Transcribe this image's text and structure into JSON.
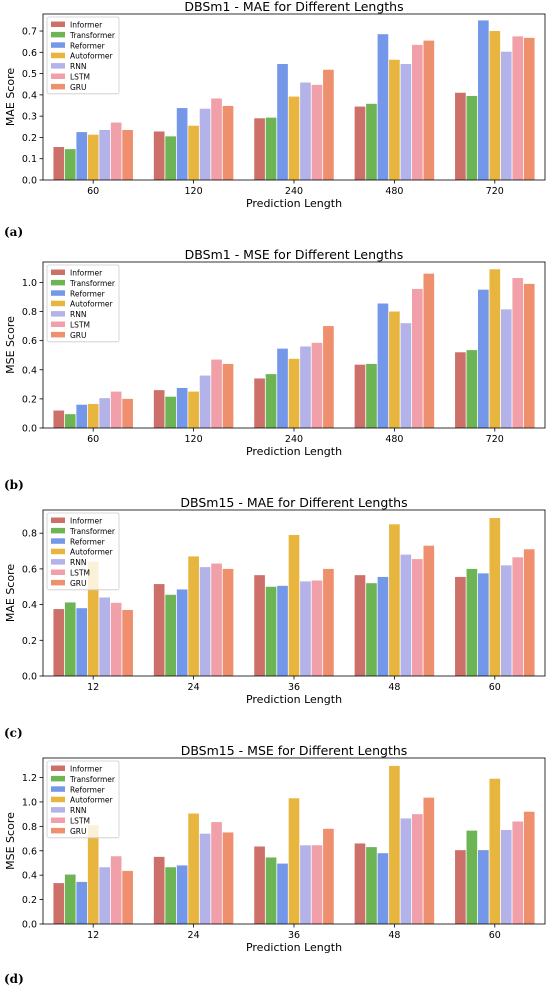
{
  "series_names": [
    "Informer",
    "Transformer",
    "Reformer",
    "Autoformer",
    "RNN",
    "LSTM",
    "GRU"
  ],
  "series_colors": [
    "#cd7069",
    "#6db454",
    "#7497ea",
    "#e8b53e",
    "#b3b3ea",
    "#f1a0aa",
    "#ee8f6e"
  ],
  "panels": [
    {
      "label": "(a)",
      "chart_data": {
        "type": "bar",
        "title": "DBSm1 - MAE for Different Lengths",
        "xlabel": "Prediction Length",
        "ylabel": "MAE Score",
        "categories": [
          "60",
          "120",
          "240",
          "480",
          "720"
        ],
        "ylim": [
          0,
          0.78
        ],
        "yticks": [
          0.0,
          0.1,
          0.2,
          0.3,
          0.4,
          0.5,
          0.6,
          0.7
        ],
        "ytick_labels": [
          "0.0",
          "0.1",
          "0.2",
          "0.3",
          "0.4",
          "0.5",
          "0.6",
          "0.7"
        ],
        "legend": "top-left",
        "series": [
          {
            "name": "Informer",
            "values": [
              0.155,
              0.228,
              0.29,
              0.345,
              0.41
            ]
          },
          {
            "name": "Transformer",
            "values": [
              0.145,
              0.205,
              0.293,
              0.358,
              0.395
            ]
          },
          {
            "name": "Reformer",
            "values": [
              0.225,
              0.338,
              0.545,
              0.685,
              0.75
            ]
          },
          {
            "name": "Autoformer",
            "values": [
              0.213,
              0.255,
              0.392,
              0.565,
              0.7
            ]
          },
          {
            "name": "RNN",
            "values": [
              0.235,
              0.335,
              0.458,
              0.545,
              0.603
            ]
          },
          {
            "name": "LSTM",
            "values": [
              0.27,
              0.383,
              0.447,
              0.635,
              0.675
            ]
          },
          {
            "name": "GRU",
            "values": [
              0.235,
              0.348,
              0.518,
              0.655,
              0.668
            ]
          }
        ]
      }
    },
    {
      "label": "(b)",
      "chart_data": {
        "type": "bar",
        "title": "DBSm1 - MSE for Different Lengths",
        "xlabel": "Prediction Length",
        "ylabel": "MSE Score",
        "categories": [
          "60",
          "120",
          "240",
          "480",
          "720"
        ],
        "ylim": [
          0,
          1.14
        ],
        "yticks": [
          0.0,
          0.2,
          0.4,
          0.6,
          0.8,
          1.0
        ],
        "ytick_labels": [
          "0.0",
          "0.2",
          "0.4",
          "0.6",
          "0.8",
          "1.0"
        ],
        "legend": "top-left",
        "series": [
          {
            "name": "Informer",
            "values": [
              0.12,
              0.26,
              0.34,
              0.435,
              0.52
            ]
          },
          {
            "name": "Transformer",
            "values": [
              0.095,
              0.215,
              0.37,
              0.44,
              0.535
            ]
          },
          {
            "name": "Reformer",
            "values": [
              0.16,
              0.275,
              0.545,
              0.855,
              0.95
            ]
          },
          {
            "name": "Autoformer",
            "values": [
              0.165,
              0.25,
              0.475,
              0.8,
              1.09
            ]
          },
          {
            "name": "RNN",
            "values": [
              0.205,
              0.36,
              0.56,
              0.72,
              0.815
            ]
          },
          {
            "name": "LSTM",
            "values": [
              0.25,
              0.47,
              0.585,
              0.955,
              1.03
            ]
          },
          {
            "name": "GRU",
            "values": [
              0.2,
              0.44,
              0.7,
              1.06,
              0.99
            ]
          }
        ]
      }
    },
    {
      "label": "(c)",
      "chart_data": {
        "type": "bar",
        "title": "DBSm15 - MAE for Different Lengths",
        "xlabel": "Prediction Length",
        "ylabel": "MAE Score",
        "categories": [
          "12",
          "24",
          "36",
          "48",
          "60"
        ],
        "ylim": [
          0,
          0.93
        ],
        "yticks": [
          0.0,
          0.2,
          0.4,
          0.6,
          0.8
        ],
        "ytick_labels": [
          "0.0",
          "0.2",
          "0.4",
          "0.6",
          "0.8"
        ],
        "legend": "top-left",
        "series": [
          {
            "name": "Informer",
            "values": [
              0.375,
              0.515,
              0.565,
              0.565,
              0.555
            ]
          },
          {
            "name": "Transformer",
            "values": [
              0.412,
              0.455,
              0.5,
              0.52,
              0.6
            ]
          },
          {
            "name": "Reformer",
            "values": [
              0.38,
              0.485,
              0.505,
              0.555,
              0.575
            ]
          },
          {
            "name": "Autoformer",
            "values": [
              0.64,
              0.67,
              0.79,
              0.85,
              0.885
            ]
          },
          {
            "name": "RNN",
            "values": [
              0.44,
              0.61,
              0.53,
              0.68,
              0.62
            ]
          },
          {
            "name": "LSTM",
            "values": [
              0.41,
              0.63,
              0.535,
              0.655,
              0.665
            ]
          },
          {
            "name": "GRU",
            "values": [
              0.37,
              0.6,
              0.6,
              0.73,
              0.71
            ]
          }
        ]
      }
    },
    {
      "label": "(d)",
      "chart_data": {
        "type": "bar",
        "title": "DBSm15 - MSE for Different Lengths",
        "xlabel": "Prediction Length",
        "ylabel": "MSE Score",
        "categories": [
          "12",
          "24",
          "36",
          "48",
          "60"
        ],
        "ylim": [
          0,
          1.36
        ],
        "yticks": [
          0.0,
          0.2,
          0.4,
          0.6,
          0.8,
          1.0,
          1.2
        ],
        "ytick_labels": [
          "0.0",
          "0.2",
          "0.4",
          "0.6",
          "0.8",
          "1.0",
          "1.2"
        ],
        "legend": "top-left",
        "series": [
          {
            "name": "Informer",
            "values": [
              0.335,
              0.55,
              0.635,
              0.66,
              0.605
            ]
          },
          {
            "name": "Transformer",
            "values": [
              0.405,
              0.465,
              0.545,
              0.63,
              0.765
            ]
          },
          {
            "name": "Reformer",
            "values": [
              0.345,
              0.48,
              0.495,
              0.58,
              0.605
            ]
          },
          {
            "name": "Autoformer",
            "values": [
              0.81,
              0.905,
              1.03,
              1.295,
              1.19
            ]
          },
          {
            "name": "RNN",
            "values": [
              0.465,
              0.74,
              0.645,
              0.865,
              0.77
            ]
          },
          {
            "name": "LSTM",
            "values": [
              0.555,
              0.835,
              0.645,
              0.9,
              0.84
            ]
          },
          {
            "name": "GRU",
            "values": [
              0.435,
              0.75,
              0.78,
              1.035,
              0.92
            ]
          }
        ]
      }
    }
  ]
}
